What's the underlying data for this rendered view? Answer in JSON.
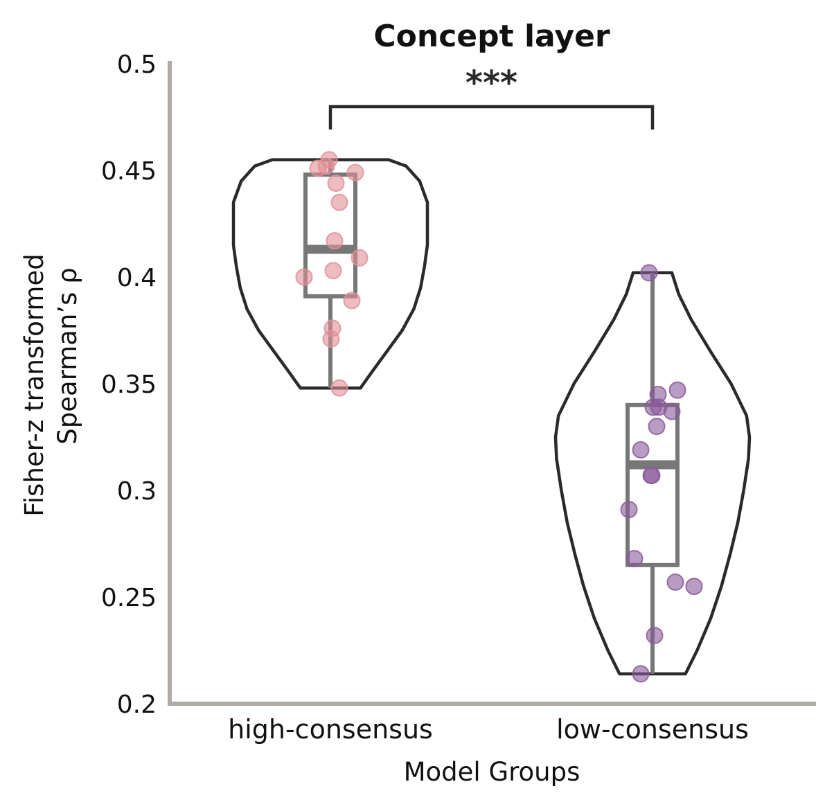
{
  "chart_data": {
    "type": "violin",
    "title": "Concept layer",
    "xlabel": "Model Groups",
    "ylabel_lines": [
      "Fisher-z transformed",
      "Spearman’s ρ"
    ],
    "ylim": [
      0.2,
      0.5
    ],
    "yticks": [
      0.2,
      0.25,
      0.3,
      0.35,
      0.4,
      0.45,
      0.5
    ],
    "ytick_labels": [
      "0.2",
      "0.25",
      "0.3",
      "0.35",
      "0.4",
      "0.45",
      "0.5"
    ],
    "categories": [
      "high-consensus",
      "low-consensus"
    ],
    "significance": {
      "from": 0,
      "to": 1,
      "label": "***"
    },
    "colors": {
      "axis": "#b0aba6",
      "violin_outline": "#2a2a2a",
      "box": "#777777",
      "high-consensus": "#e08f97",
      "low-consensus": "#8a5a9a"
    },
    "series": [
      {
        "category": "high-consensus",
        "violin_extent": [
          0.348,
          0.455
        ],
        "box": {
          "q1": 0.391,
          "median": 0.413,
          "q3": 0.448,
          "whisker_low": 0.348,
          "whisker_high": 0.455
        },
        "density": [
          [
            0.348,
            0.31
          ],
          [
            0.355,
            0.42
          ],
          [
            0.365,
            0.58
          ],
          [
            0.375,
            0.74
          ],
          [
            0.385,
            0.86
          ],
          [
            0.395,
            0.93
          ],
          [
            0.405,
            0.97
          ],
          [
            0.415,
            1.0
          ],
          [
            0.425,
            1.0
          ],
          [
            0.435,
            1.0
          ],
          [
            0.445,
            0.92
          ],
          [
            0.452,
            0.78
          ],
          [
            0.455,
            0.6
          ]
        ],
        "points": [
          {
            "offset": -0.18,
            "value": 0.451
          },
          {
            "offset": -0.06,
            "value": 0.452
          },
          {
            "offset": -0.02,
            "value": 0.455
          },
          {
            "offset": 0.36,
            "value": 0.449
          },
          {
            "offset": 0.08,
            "value": 0.444
          },
          {
            "offset": 0.13,
            "value": 0.435
          },
          {
            "offset": 0.06,
            "value": 0.417
          },
          {
            "offset": 0.42,
            "value": 0.409
          },
          {
            "offset": -0.38,
            "value": 0.4
          },
          {
            "offset": 0.04,
            "value": 0.403
          },
          {
            "offset": 0.31,
            "value": 0.389
          },
          {
            "offset": 0.03,
            "value": 0.376
          },
          {
            "offset": 0.01,
            "value": 0.371
          },
          {
            "offset": 0.13,
            "value": 0.348
          }
        ]
      },
      {
        "category": "low-consensus",
        "violin_extent": [
          0.214,
          0.402
        ],
        "box": {
          "q1": 0.265,
          "median": 0.312,
          "q3": 0.34,
          "whisker_low": 0.214,
          "whisker_high": 0.402
        },
        "density": [
          [
            0.214,
            0.34
          ],
          [
            0.225,
            0.46
          ],
          [
            0.24,
            0.6
          ],
          [
            0.255,
            0.71
          ],
          [
            0.27,
            0.8
          ],
          [
            0.285,
            0.88
          ],
          [
            0.3,
            0.94
          ],
          [
            0.315,
            0.99
          ],
          [
            0.325,
            1.0
          ],
          [
            0.335,
            0.97
          ],
          [
            0.35,
            0.81
          ],
          [
            0.365,
            0.6
          ],
          [
            0.38,
            0.4
          ],
          [
            0.392,
            0.27
          ],
          [
            0.402,
            0.2
          ]
        ],
        "points": [
          {
            "offset": -0.05,
            "value": 0.402
          },
          {
            "offset": 0.08,
            "value": 0.345
          },
          {
            "offset": 0.36,
            "value": 0.347
          },
          {
            "offset": 0.01,
            "value": 0.339
          },
          {
            "offset": 0.09,
            "value": 0.339
          },
          {
            "offset": 0.28,
            "value": 0.337
          },
          {
            "offset": 0.06,
            "value": 0.33
          },
          {
            "offset": -0.17,
            "value": 0.319
          },
          {
            "offset": -0.02,
            "value": 0.307
          },
          {
            "offset": -0.01,
            "value": 0.307
          },
          {
            "offset": -0.34,
            "value": 0.291
          },
          {
            "offset": -0.26,
            "value": 0.268
          },
          {
            "offset": 0.33,
            "value": 0.257
          },
          {
            "offset": 0.6,
            "value": 0.255
          },
          {
            "offset": 0.03,
            "value": 0.232
          },
          {
            "offset": -0.17,
            "value": 0.214
          }
        ]
      }
    ]
  }
}
